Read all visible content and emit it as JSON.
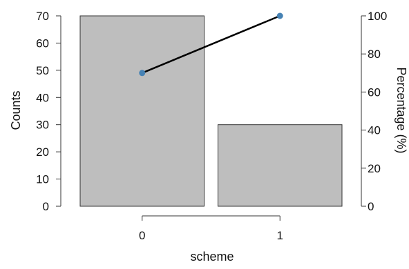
{
  "chart_data": {
    "type": "bar",
    "subtype": "pareto",
    "xlabel": "scheme",
    "ylabel_left": "Counts",
    "ylabel_right": "Percentage (%)",
    "categories": [
      "0",
      "1"
    ],
    "counts": [
      70,
      30
    ],
    "cumulative_percentage": [
      70,
      100
    ],
    "ylim_left": [
      0,
      70
    ],
    "yticks_left": [
      0,
      10,
      20,
      30,
      40,
      50,
      60,
      70
    ],
    "ylim_right": [
      0,
      100
    ],
    "yticks_right": [
      0,
      20,
      40,
      60,
      80,
      100
    ],
    "grid": false,
    "colors": {
      "bar_fill": "#bebebe",
      "bar_stroke": "#333333",
      "line": "#000000",
      "point": "#4682b4",
      "axis": "#333333"
    }
  }
}
